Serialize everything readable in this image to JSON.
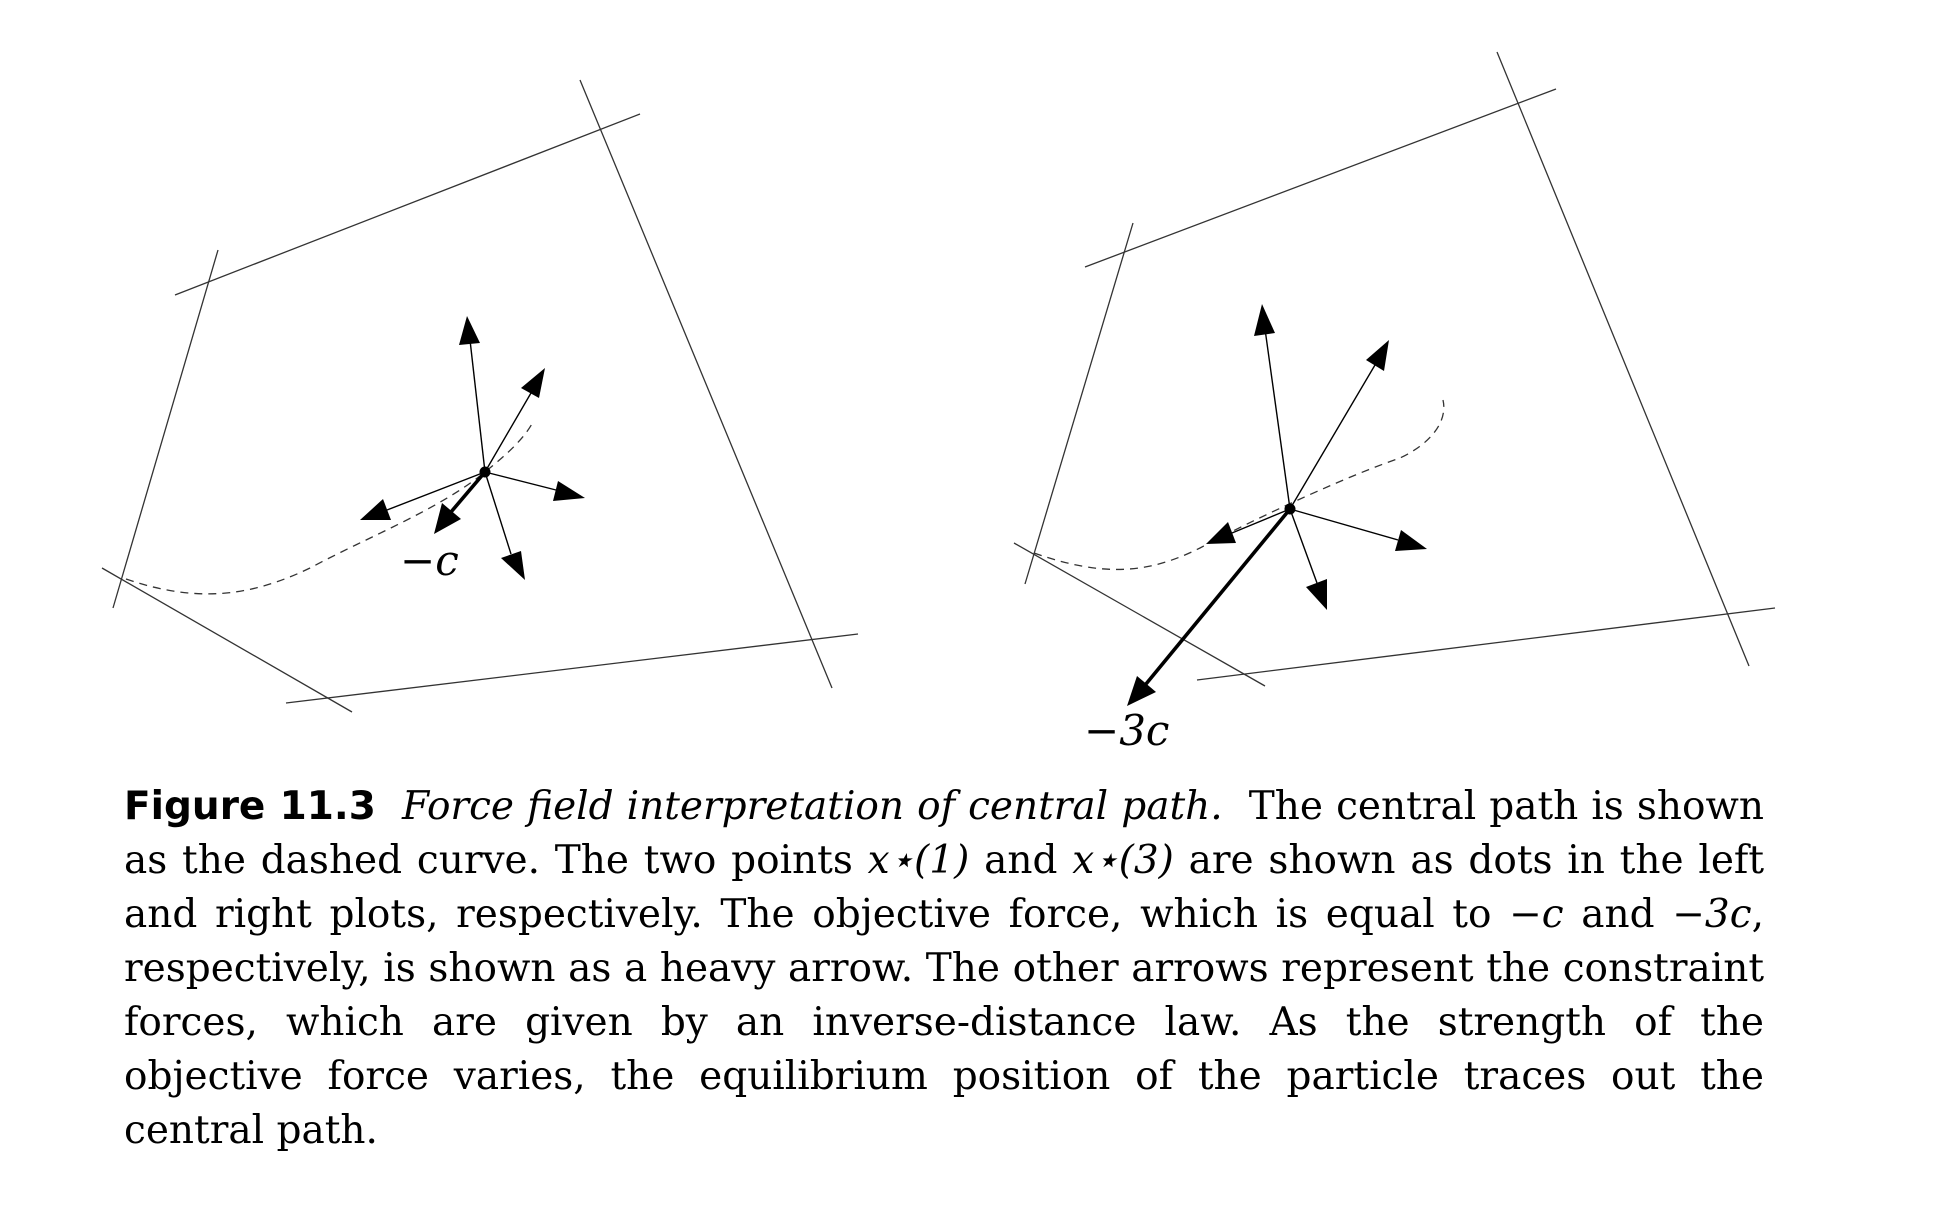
{
  "figure": {
    "panels": [
      {
        "objective_force_label": "−c"
      },
      {
        "objective_force_label": "−3c"
      }
    ]
  },
  "caption": {
    "figure_number": "Figure 11.3",
    "title": "Force field interpretation of central path.",
    "body_1": "The central path is shown as the dashed curve. The two points ",
    "x1": "x⋆(1)",
    "and": " and ",
    "x3": "x⋆(3)",
    "body_2": " are shown as dots in the left and right plots, respectively. The objective force, which is equal to ",
    "neg_c": "−c",
    "and2": " and ",
    "neg_3c": "−3c",
    "body_3": ", respectively, is shown as a heavy arrow. The other arrows represent the constraint forces, which are given by an inverse-distance law. As the strength of the objective force varies, the equilibrium position of the particle traces out the central path."
  }
}
